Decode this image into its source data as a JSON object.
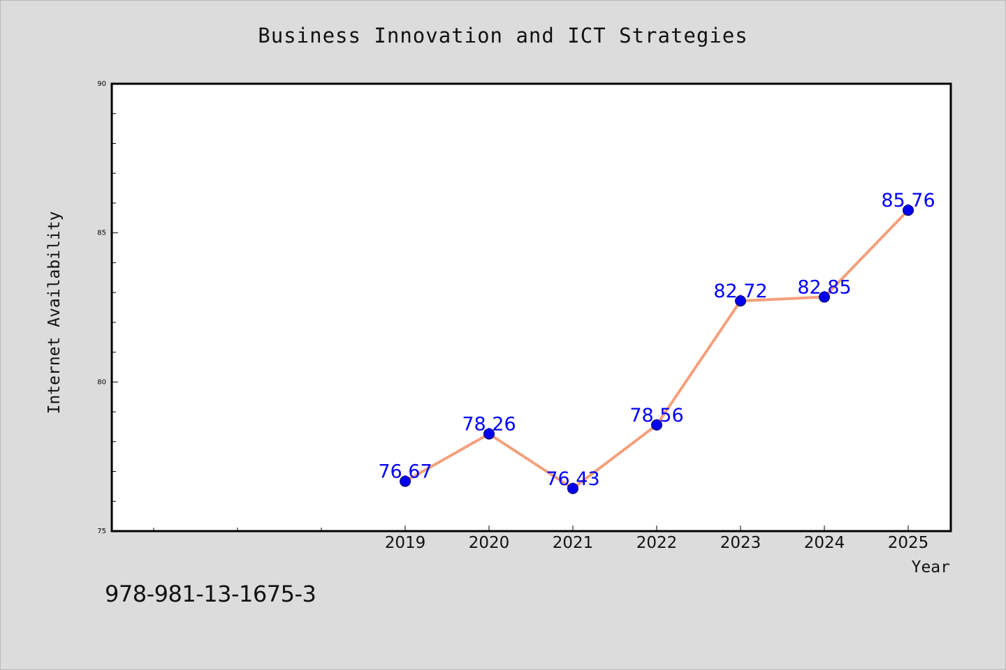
{
  "chart_data": {
    "type": "line",
    "title": "Business Innovation and ICT Strategies",
    "xlabel": "Year",
    "ylabel": "Internet Availability",
    "categories": [
      "2019",
      "2020",
      "2021",
      "2022",
      "2023",
      "2024",
      "2025"
    ],
    "values": [
      76.67,
      78.26,
      76.43,
      78.56,
      82.72,
      82.85,
      85.76
    ],
    "data_labels": [
      "76.67",
      "78.26",
      "76.43",
      "78.56",
      "82.72",
      "82.85",
      "85.76"
    ],
    "ylim": [
      75,
      90
    ],
    "yticks": [
      "75",
      "80",
      "85",
      "90"
    ],
    "grid": false,
    "line_color": "#f4a07c",
    "marker_color": "#0000ee",
    "label_color": "#0000ff"
  },
  "footer": {
    "code": "978-981-13-1675-3"
  }
}
